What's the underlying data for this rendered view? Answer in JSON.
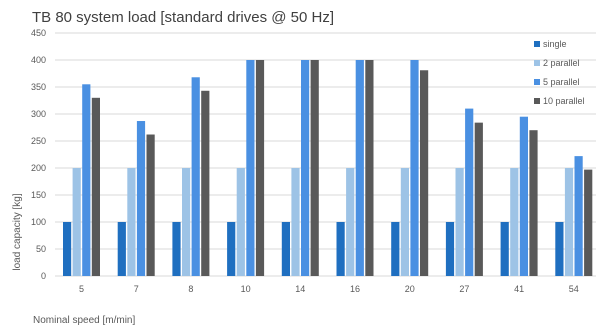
{
  "chart_data": {
    "type": "bar",
    "title": "TB 80 system load [standard drives @ 50 Hz]",
    "xlabel": "Nominal speed [m/min]",
    "ylabel": "load capacity [kg]",
    "ylim": [
      0,
      450
    ],
    "yticks": [
      0,
      50,
      100,
      150,
      200,
      250,
      300,
      350,
      400,
      450
    ],
    "categories": [
      "5",
      "7",
      "8",
      "10",
      "14",
      "16",
      "20",
      "27",
      "41",
      "54"
    ],
    "grid": true,
    "legend_position": "top-right",
    "series": [
      {
        "name": "single",
        "color": "#1f6fc0",
        "values": [
          100,
          100,
          100,
          100,
          100,
          100,
          100,
          100,
          100,
          100
        ]
      },
      {
        "name": "2 parallel",
        "color": "#9dc3e6",
        "values": [
          200,
          200,
          200,
          200,
          200,
          200,
          200,
          200,
          200,
          200
        ]
      },
      {
        "name": "5 parallel",
        "color": "#4a90e2",
        "values": [
          355,
          287,
          368,
          400,
          400,
          400,
          400,
          310,
          295,
          222
        ]
      },
      {
        "name": "10 parallel",
        "color": "#595959",
        "values": [
          330,
          262,
          343,
          400,
          400,
          400,
          381,
          284,
          270,
          197
        ]
      }
    ]
  }
}
